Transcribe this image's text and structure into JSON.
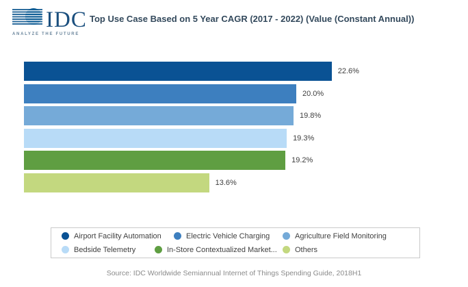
{
  "header": {
    "logo_text": "IDC",
    "logo_tagline": "ANALYZE THE FUTURE",
    "title": "Top Use Case Based on 5 Year CAGR (2017 - 2022) (Value (Constant Annual))"
  },
  "chart_data": {
    "type": "bar",
    "orientation": "horizontal",
    "title": "Top Use Case Based on 5 Year CAGR (2017 - 2022) (Value (Constant Annual))",
    "categories": [
      "Airport Facility Automation",
      "Electric Vehicle Charging",
      "Agriculture Field Monitoring",
      "Bedside Telemetry",
      "In-Store Contextualized Market...",
      "Others"
    ],
    "values": [
      22.6,
      20.0,
      19.8,
      19.3,
      19.2,
      13.6
    ],
    "value_suffix": "%",
    "colors": [
      "#0a5294",
      "#3d7fbf",
      "#75aad8",
      "#b8dbf7",
      "#5f9e42",
      "#c3d87f"
    ],
    "xlim": [
      0,
      22.6
    ],
    "xlabel": "",
    "ylabel": "",
    "gridlines": false,
    "legend_position": "bottom"
  },
  "source": "Source: IDC Worldwide Semiannual Internet of Things Spending Guide, 2018H1"
}
